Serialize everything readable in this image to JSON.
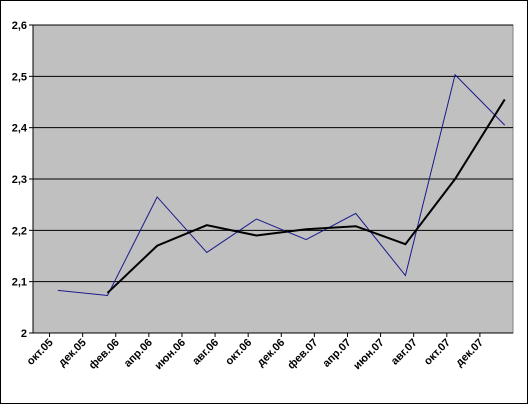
{
  "chart_data": {
    "type": "line",
    "series": [
      {
        "color": "#1a1a8c",
        "width": 1,
        "x": [
          0.5,
          3.5,
          6.5,
          9.5,
          12.5,
          15.5,
          18.5,
          21.5,
          24.5,
          27.5
        ],
        "values": [
          2.083,
          2.073,
          2.265,
          2.157,
          2.222,
          2.182,
          2.233,
          2.112,
          2.503,
          2.405
        ]
      },
      {
        "color": "#000000",
        "width": 2,
        "x": [
          3.5,
          6.5,
          9.5,
          12.5,
          15.5,
          18.5,
          21.5,
          24.5,
          27.5
        ],
        "values": [
          2.078,
          2.17,
          2.21,
          2.19,
          2.202,
          2.208,
          2.173,
          2.3,
          2.455
        ]
      }
    ],
    "xlim": [
      -1,
      28
    ],
    "xticks": [
      {
        "value": 0,
        "label": "окт.05"
      },
      {
        "value": 2,
        "label": "дек.05"
      },
      {
        "value": 4,
        "label": "фев.06"
      },
      {
        "value": 6,
        "label": "апр.06"
      },
      {
        "value": 8,
        "label": "июн.06"
      },
      {
        "value": 10,
        "label": "авг.06"
      },
      {
        "value": 12,
        "label": "окт.06"
      },
      {
        "value": 14,
        "label": "дек.06"
      },
      {
        "value": 16,
        "label": "фев.07"
      },
      {
        "value": 18,
        "label": "апр.07"
      },
      {
        "value": 20,
        "label": "июн.07"
      },
      {
        "value": 22,
        "label": "авг.07"
      },
      {
        "value": 24,
        "label": "окт.07"
      },
      {
        "value": 26,
        "label": "дек.07"
      }
    ],
    "ylim": [
      2,
      2.6
    ],
    "yticks": [
      2,
      {
        "value": 2.1,
        "label": "2,1"
      },
      {
        "value": 2.2,
        "label": "2,2"
      },
      {
        "value": 2.3,
        "label": "2,3"
      },
      {
        "value": 2.4,
        "label": "2,4"
      },
      {
        "value": 2.5,
        "label": "2,5"
      },
      {
        "value": 2.6,
        "label": "2,6"
      }
    ],
    "grid": true,
    "plot_background": "#c0c0c0"
  }
}
